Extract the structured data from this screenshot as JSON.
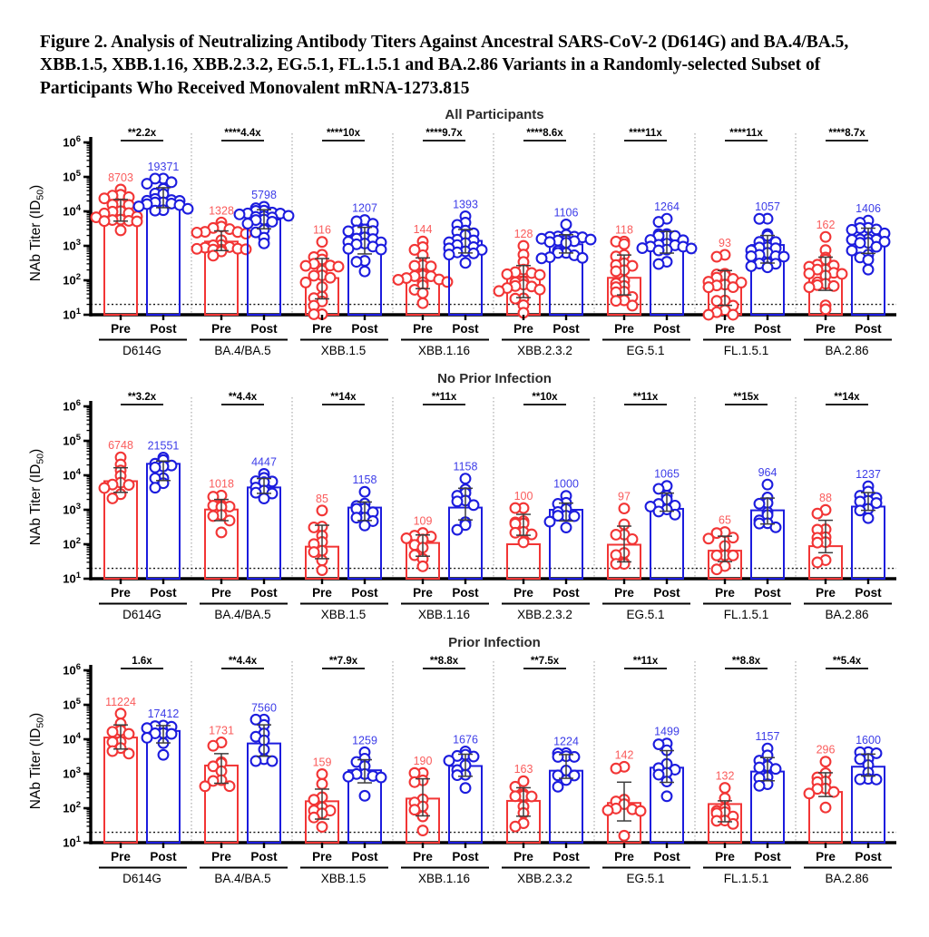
{
  "figure_title": "Figure 2. Analysis of Neutralizing Antibody Titers Against Ancestral SARS-CoV-2 (D614G) and BA.4/BA.5, XBB.1.5, XBB.1.16, XBB.2.3.2, EG.5.1, FL.1.5.1 and BA.2.86 Variants in a Randomly-selected Subset of Participants Who Received Monovalent mRNA-1273.815",
  "colors": {
    "pre": "#F23535",
    "post": "#1C1CDE",
    "pre_label": "#FA5C5C",
    "post_label": "#3C3CE8",
    "fold_text": "#000000",
    "error_bar": "#3C3C3C",
    "lloq_line": "#111111",
    "divider": "#999999",
    "axis": "#000000"
  },
  "ylabel_parts": [
    "NAb Titer (ID",
    "50",
    ")"
  ],
  "chart_data": [
    {
      "type": "scatter",
      "title": "All Participants",
      "ylabel": "NAb Titer (ID50)",
      "yaxis": {
        "scale": "log10",
        "min_exp": 1,
        "max_exp": 6
      },
      "lloq": 20,
      "n_per_arm": 20,
      "x_sublabels": [
        "Pre",
        "Post"
      ],
      "groups": [
        {
          "variant": "D614G",
          "fold_label": "**2.2x",
          "pre_gmt": 8703,
          "post_gmt": 19371
        },
        {
          "variant": "BA.4/BA.5",
          "fold_label": "****4.4x",
          "pre_gmt": 1328,
          "post_gmt": 5798
        },
        {
          "variant": "XBB.1.5",
          "fold_label": "****10x",
          "pre_gmt": 116,
          "post_gmt": 1207
        },
        {
          "variant": "XBB.1.16",
          "fold_label": "****9.7x",
          "pre_gmt": 144,
          "post_gmt": 1393
        },
        {
          "variant": "XBB.2.3.2",
          "fold_label": "****8.6x",
          "pre_gmt": 128,
          "post_gmt": 1106
        },
        {
          "variant": "EG.5.1",
          "fold_label": "****11x",
          "pre_gmt": 118,
          "post_gmt": 1264
        },
        {
          "variant": "FL.1.5.1",
          "fold_label": "****11x",
          "pre_gmt": 93,
          "post_gmt": 1057
        },
        {
          "variant": "BA.2.86",
          "fold_label": "****8.7x",
          "pre_gmt": 162,
          "post_gmt": 1406
        }
      ]
    },
    {
      "type": "scatter",
      "title": "No Prior Infection",
      "ylabel": "NAb Titer (ID50)",
      "yaxis": {
        "scale": "log10",
        "min_exp": 1,
        "max_exp": 6
      },
      "lloq": 20,
      "n_per_arm": 10,
      "x_sublabels": [
        "Pre",
        "Post"
      ],
      "groups": [
        {
          "variant": "D614G",
          "fold_label": "**3.2x",
          "pre_gmt": 6748,
          "post_gmt": 21551
        },
        {
          "variant": "BA.4/BA.5",
          "fold_label": "**4.4x",
          "pre_gmt": 1018,
          "post_gmt": 4447
        },
        {
          "variant": "XBB.1.5",
          "fold_label": "**14x",
          "pre_gmt": 85,
          "post_gmt": 1158
        },
        {
          "variant": "XBB.1.16",
          "fold_label": "**11x",
          "pre_gmt": 109,
          "post_gmt": 1158
        },
        {
          "variant": "XBB.2.3.2",
          "fold_label": "**10x",
          "pre_gmt": 100,
          "post_gmt": 1000
        },
        {
          "variant": "EG.5.1",
          "fold_label": "**11x",
          "pre_gmt": 97,
          "post_gmt": 1065
        },
        {
          "variant": "FL.1.5.1",
          "fold_label": "**15x",
          "pre_gmt": 65,
          "post_gmt": 964
        },
        {
          "variant": "BA.2.86",
          "fold_label": "**14x",
          "pre_gmt": 88,
          "post_gmt": 1237
        }
      ]
    },
    {
      "type": "scatter",
      "title": "Prior Infection",
      "ylabel": "NAb Titer (ID50)",
      "yaxis": {
        "scale": "log10",
        "min_exp": 1,
        "max_exp": 6
      },
      "lloq": 20,
      "n_per_arm": 10,
      "x_sublabels": [
        "Pre",
        "Post"
      ],
      "groups": [
        {
          "variant": "D614G",
          "fold_label": "1.6x",
          "pre_gmt": 11224,
          "post_gmt": 17412
        },
        {
          "variant": "BA.4/BA.5",
          "fold_label": "**4.4x",
          "pre_gmt": 1731,
          "post_gmt": 7560
        },
        {
          "variant": "XBB.1.5",
          "fold_label": "**7.9x",
          "pre_gmt": 159,
          "post_gmt": 1259
        },
        {
          "variant": "XBB.1.16",
          "fold_label": "**8.8x",
          "pre_gmt": 190,
          "post_gmt": 1676
        },
        {
          "variant": "XBB.2.3.2",
          "fold_label": "**7.5x",
          "pre_gmt": 163,
          "post_gmt": 1224
        },
        {
          "variant": "EG.5.1",
          "fold_label": "**11x",
          "pre_gmt": 142,
          "post_gmt": 1499
        },
        {
          "variant": "FL.1.5.1",
          "fold_label": "**8.8x",
          "pre_gmt": 132,
          "post_gmt": 1157
        },
        {
          "variant": "BA.2.86",
          "fold_label": "**5.4x",
          "pre_gmt": 296,
          "post_gmt": 1600
        }
      ]
    }
  ]
}
